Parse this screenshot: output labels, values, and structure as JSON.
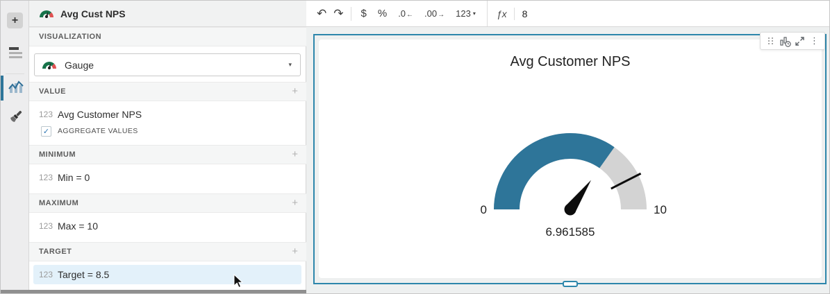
{
  "rail": {
    "add_label": "+"
  },
  "panel": {
    "title": "Avg Cust NPS",
    "sections": {
      "visualization": {
        "label": "VISUALIZATION",
        "selected": "Gauge",
        "caret": "▾"
      },
      "value": {
        "label": "VALUE",
        "add": "+",
        "field_prefix": "123",
        "field": "Avg Customer NPS",
        "aggregate_label": "AGGREGATE VALUES",
        "aggregate_checked": true,
        "check": "✓"
      },
      "minimum": {
        "label": "MINIMUM",
        "add": "+",
        "field_prefix": "123",
        "field": "Min = 0"
      },
      "maximum": {
        "label": "MAXIMUM",
        "add": "+",
        "field_prefix": "123",
        "field": "Max = 10"
      },
      "target": {
        "label": "TARGET",
        "add": "+",
        "field_prefix": "123",
        "field": "Target = 8.5"
      }
    }
  },
  "toolbar": {
    "undo": "↶",
    "redo": "↷",
    "currency": "$",
    "percent": "%",
    "decrease_decimal": ".0",
    "decrease_arrow": "←",
    "increase_decimal": ".00",
    "increase_arrow": "→",
    "number_format": "123",
    "caret": "▾",
    "fx": "ƒx",
    "formula_value": "8"
  },
  "element_toolbar": {
    "kebab": "⋮"
  },
  "chart_data": {
    "type": "gauge",
    "title": "Avg Customer NPS",
    "value": 6.961585,
    "value_label": "6.961585",
    "min": 0,
    "max": 10,
    "min_label": "0",
    "max_label": "10",
    "target": 8.5,
    "arc_span_degrees": 180,
    "colors": {
      "value_arc": "#2e7599",
      "track_arc": "#d3d3d3",
      "needle": "#0d0d0d",
      "target_tick": "#0d0d0d"
    }
  },
  "colors": {
    "accent": "#2e7599",
    "selection_border": "#2d86ab",
    "highlight_row": "#e3f1fa"
  }
}
